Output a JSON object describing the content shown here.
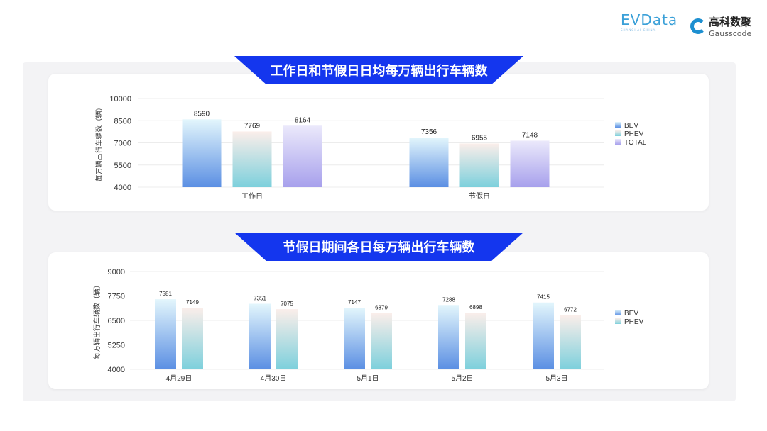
{
  "logos": {
    "evdata": "EVData",
    "evdata_sub": "SHANGHAI CHINA",
    "gauss_cn": "高科数聚",
    "gauss_en": "Gausscode"
  },
  "colors": {
    "banner": "#1436ee",
    "bev": [
      "#e3f6fc",
      "#5b8fe3"
    ],
    "phev": [
      "#fbeeea",
      "#7dd0dc"
    ],
    "total": [
      "#ebe9fb",
      "#a7a0ec"
    ]
  },
  "chart_data": [
    {
      "type": "bar",
      "title": "工作日和节假日日均每万辆出行车辆数",
      "ylabel": "每万辆出行车辆数（辆）",
      "ylim": [
        4000,
        10000
      ],
      "yticks": [
        4000,
        5500,
        7000,
        8500,
        10000
      ],
      "grid": true,
      "legend_placement": "right",
      "categories": [
        "工作日",
        "节假日"
      ],
      "series": [
        {
          "name": "BEV",
          "values": [
            8590,
            7356
          ]
        },
        {
          "name": "PHEV",
          "values": [
            7769,
            6955
          ]
        },
        {
          "name": "TOTAL",
          "values": [
            8164,
            7148
          ]
        }
      ]
    },
    {
      "type": "bar",
      "title": "节假日期间各日每万辆出行车辆数",
      "ylabel": "每万辆出行车辆数（辆）",
      "ylim": [
        4000,
        9000
      ],
      "yticks": [
        4000,
        5250,
        6500,
        7750,
        9000
      ],
      "grid": true,
      "legend_placement": "right",
      "categories": [
        "4月29日",
        "4月30日",
        "5月1日",
        "5月2日",
        "5月3日"
      ],
      "series": [
        {
          "name": "BEV",
          "values": [
            7581,
            7351,
            7147,
            7288,
            7415
          ]
        },
        {
          "name": "PHEV",
          "values": [
            7149,
            7075,
            6879,
            6898,
            6772
          ]
        }
      ]
    }
  ]
}
